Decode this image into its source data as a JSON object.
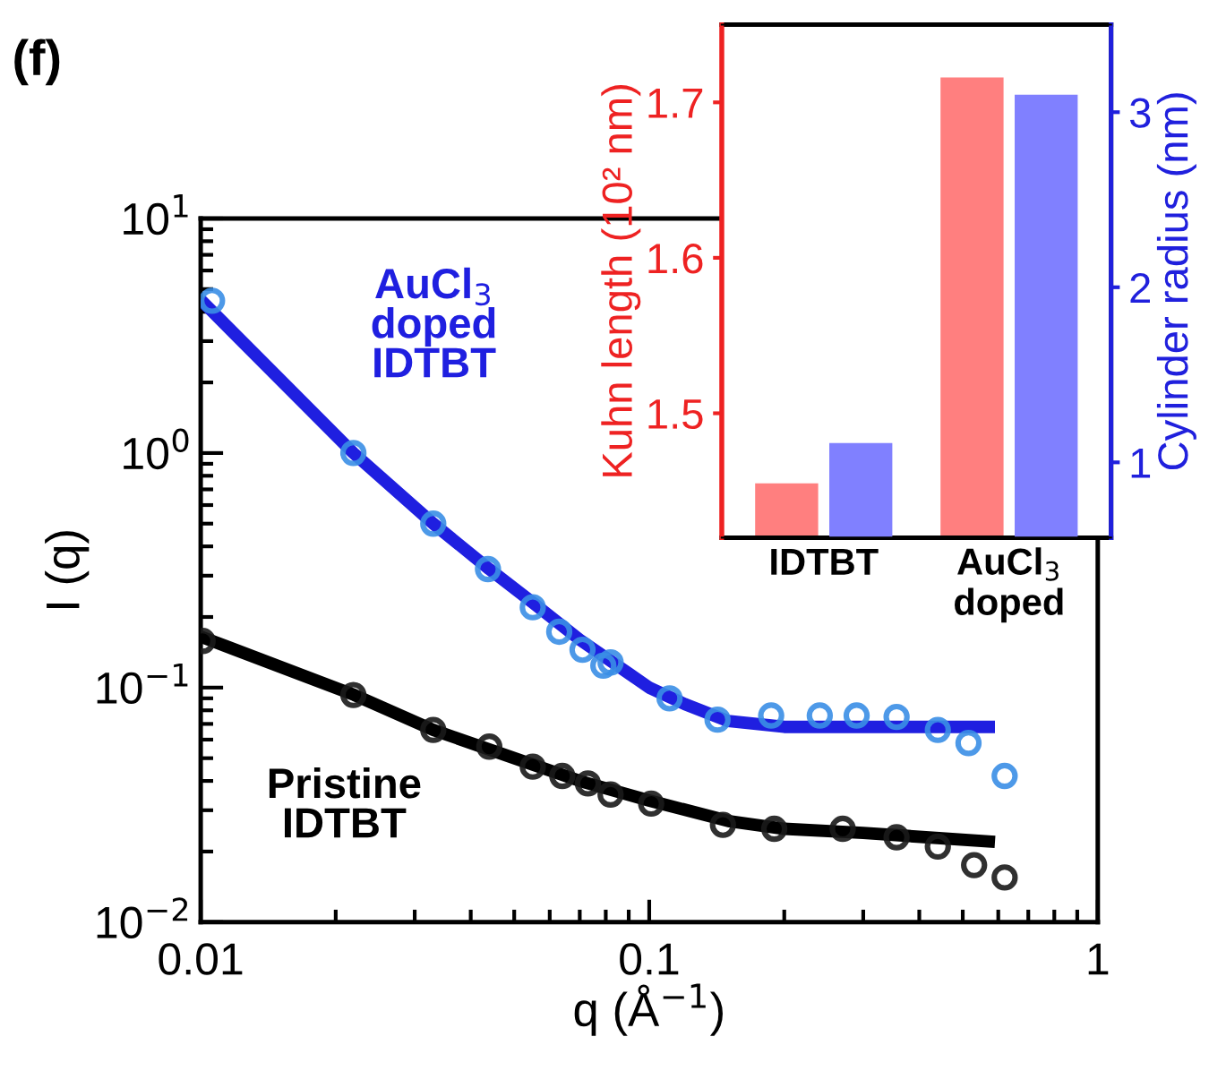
{
  "chart_data": [
    {
      "type": "scatter",
      "xlabel": "q (Å$^{−1}$)",
      "ylabel": "I (q)",
      "log": "xy",
      "annotations": [
        "(f)"
      ],
      "grid": false,
      "xlim": [
        0.01,
        1
      ],
      "xticks": [
        0.01,
        0.1,
        1
      ],
      "ylim": [
        0.01,
        10
      ],
      "yticks": [
        {
          "value": 0.01,
          "label": "10$^{−2}$"
        },
        {
          "value": 0.1,
          "label": "10$^{−1}$"
        },
        {
          "value": 1,
          "label": "10$^{0}$"
        },
        {
          "value": 10,
          "label": "10$^{1}$"
        }
      ],
      "series": [
        {
          "type": "scatter",
          "marker": "circle",
          "color": "#3a8ee6",
          "x": [
            0.0106,
            0.0219,
            0.033,
            0.0437,
            0.055,
            0.063,
            0.071,
            0.079,
            0.082,
            0.111,
            0.142,
            0.187,
            0.24,
            0.29,
            0.356,
            0.44,
            0.515,
            0.62
          ],
          "values": [
            4.46,
            1.0,
            0.5,
            0.32,
            0.22,
            0.173,
            0.145,
            0.124,
            0.128,
            0.09,
            0.073,
            0.076,
            0.076,
            0.076,
            0.075,
            0.066,
            0.058,
            0.042
          ]
        },
        {
          "type": "line",
          "marker": "none",
          "name": "AuCl$_{3}$\ndoped\nIDTBT",
          "color": "#1f1fe0",
          "x": [
            0.01,
            0.0219,
            0.033,
            0.044,
            0.055,
            0.07,
            0.09,
            0.1,
            0.12,
            0.15,
            0.2,
            0.3,
            0.59
          ],
          "values": [
            4.5,
            1.0,
            0.5,
            0.32,
            0.23,
            0.16,
            0.115,
            0.1,
            0.085,
            0.072,
            0.068,
            0.068,
            0.068
          ]
        },
        {
          "type": "scatter",
          "marker": "circle",
          "color": "#1a1a1a",
          "x": [
            0.0101,
            0.0219,
            0.033,
            0.044,
            0.055,
            0.064,
            0.073,
            0.082,
            0.101,
            0.146,
            0.19,
            0.27,
            0.356,
            0.44,
            0.53,
            0.62
          ],
          "values": [
            0.158,
            0.093,
            0.066,
            0.056,
            0.046,
            0.042,
            0.039,
            0.035,
            0.032,
            0.026,
            0.025,
            0.025,
            0.023,
            0.021,
            0.0175,
            0.0155
          ]
        },
        {
          "type": "line",
          "marker": "none",
          "name": "Pristine\nIDTBT",
          "color": "#000000",
          "x": [
            0.01,
            0.022,
            0.033,
            0.05,
            0.07,
            0.1,
            0.15,
            0.2,
            0.3,
            0.59
          ],
          "values": [
            0.165,
            0.093,
            0.066,
            0.05,
            0.04,
            0.033,
            0.027,
            0.025,
            0.024,
            0.022
          ]
        }
      ]
    },
    {
      "type": "bar",
      "categories": [
        "IDTBT",
        "AuCl$_{3}$\ndoped"
      ],
      "ylabel": "Kuhn length (10² nm)",
      "y2label": "Cylinder radius (nm)",
      "grid": false,
      "ylim": [
        1.42,
        1.75
      ],
      "yticks": [
        1.5,
        1.6,
        1.7
      ],
      "y2lim": [
        0.57,
        3.5
      ],
      "y2ticks": [
        1,
        2,
        3
      ],
      "series": [
        {
          "color": "#ff7f7f",
          "values": [
            1.455,
            1.716
          ]
        },
        {
          "color": "#8080ff",
          "axis": "y2",
          "values": [
            1.11,
            3.1
          ]
        }
      ]
    }
  ]
}
